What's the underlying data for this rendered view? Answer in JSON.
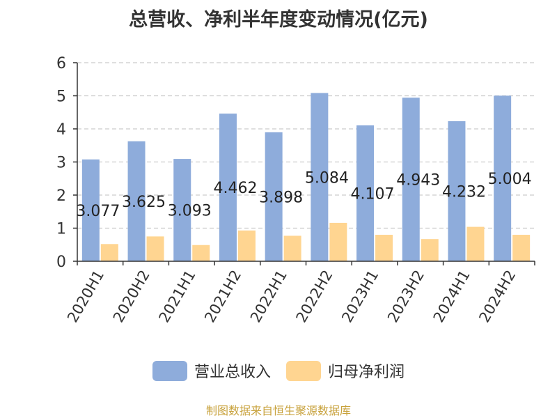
{
  "chart_data": {
    "type": "bar",
    "title": "总营收、净利半年度变动情况(亿元)",
    "xlabel": "",
    "ylabel": "",
    "ylim": [
      0,
      6
    ],
    "yticks": [
      0,
      1,
      2,
      3,
      4,
      5,
      6
    ],
    "grid": true,
    "legend_position": "bottom",
    "categories": [
      "2020H1",
      "2020H2",
      "2021H1",
      "2021H2",
      "2022H1",
      "2022H2",
      "2023H1",
      "2023H2",
      "2024H1",
      "2024H2"
    ],
    "series": [
      {
        "name": "营业总收入",
        "color": "#8eacdb",
        "values": [
          3.077,
          3.625,
          3.093,
          4.462,
          3.898,
          5.084,
          4.107,
          4.943,
          4.232,
          5.004
        ],
        "labels": [
          "3.077",
          "3.625",
          "3.093",
          "4.462",
          "3.898",
          "5.084",
          "4.107",
          "4.943",
          "4.232",
          "5.004"
        ]
      },
      {
        "name": "归母净利润",
        "color": "#ffd591",
        "values": [
          0.52,
          0.75,
          0.49,
          0.93,
          0.77,
          1.16,
          0.8,
          0.67,
          1.04,
          0.8
        ]
      }
    ]
  },
  "source_note": "制图数据来自恒生聚源数据库"
}
